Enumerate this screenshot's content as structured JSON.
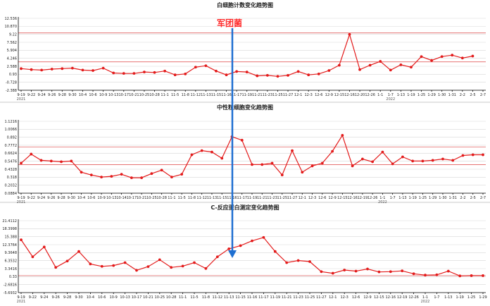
{
  "annotation": {
    "label": "军团菌",
    "color": "#1f6fd1"
  },
  "colors": {
    "series": "#e31b1b",
    "reference": "#d44444",
    "arrow": "#1f6fd1"
  },
  "chart_data": [
    {
      "type": "line",
      "title": "白细胞计数变化趋势图",
      "x": [
        "9-19",
        "9-22",
        "9-24",
        "9-26",
        "9-28",
        "9-30",
        "10-4",
        "10-6",
        "10-9",
        "10-13",
        "10-17",
        "10-21",
        "10-25",
        "10-28",
        "11-1",
        "11-5",
        "11-8",
        "11-12",
        "11-13",
        "11-15",
        "11-16",
        "11-17",
        "11-19",
        "11-21",
        "11-23",
        "11-25",
        "11-27",
        "12-1",
        "12-3",
        "12-6",
        "12-9",
        "12-15",
        "12-16",
        "12-20",
        "12-26",
        "1-1",
        "1-7",
        "1-13",
        "1-19",
        "1-25",
        "1-29",
        "1-30",
        "1-31",
        "2-2",
        "2-5",
        "2-7"
      ],
      "x_tick_labels": [
        "9-19",
        "9-22",
        "9-24",
        "9-26",
        "9-28",
        "9-30",
        "10-4",
        "10-6",
        "10-9",
        "10-13",
        "10-17",
        "10-21",
        "10-25",
        "10-28",
        "11-1",
        "11-5",
        "11-8",
        "11-12",
        "11-13",
        "11-15",
        "11-16",
        "11-17",
        "11-19",
        "11-21",
        "11-23",
        "11-25",
        "11-27",
        "12-1",
        "12-3",
        "12-6",
        "12-9",
        "12-15",
        "12-16",
        "12-20",
        "12-26",
        "1-1",
        "1-7",
        "1-13",
        "1-19",
        "1-25",
        "1-29",
        "1-30",
        "1-31",
        "2-2",
        "2-5",
        "2-7"
      ],
      "years": [
        {
          "label": "2021",
          "at": "9-19"
        },
        {
          "label": "2022",
          "at": "1-7"
        }
      ],
      "values": [
        2.1,
        1.9,
        1.8,
        2.0,
        2.1,
        2.2,
        1.8,
        1.7,
        2.2,
        1.2,
        1.1,
        1.1,
        1.4,
        1.3,
        1.6,
        0.8,
        1.0,
        2.4,
        2.7,
        1.6,
        0.8,
        1.5,
        1.4,
        0.6,
        0.7,
        0.5,
        0.7,
        1.5,
        0.8,
        1.0,
        1.7,
        2.8,
        9.2,
        1.9,
        2.8,
        3.6,
        1.8,
        2.9,
        2.4,
        4.6,
        3.8,
        4.6,
        4.9,
        4.3,
        4.7,
        null
      ],
      "y_ticks": [
        "12.536",
        "10.870",
        "9.22",
        "7.562",
        "5.904",
        "4.246",
        "2.588",
        "0.93",
        "-0.728",
        "-2.388"
      ],
      "ylim": [
        -2.388,
        12.536
      ],
      "reference_lines": [
        9.5,
        3.5
      ],
      "ylabel": "",
      "xlabel": ""
    },
    {
      "type": "line",
      "title": "中性粒细胞变化趋势图",
      "x": [
        "9-19",
        "9-22",
        "9-24",
        "9-26",
        "9-28",
        "9-30",
        "10-4",
        "10-6",
        "10-9",
        "10-13",
        "10-14",
        "10-17",
        "10-21",
        "10-25",
        "10-28",
        "11-1",
        "11-5",
        "11-8",
        "11-12",
        "11-13",
        "11-15",
        "11-16",
        "11-17",
        "11-19",
        "11-21",
        "11-23",
        "11-25",
        "11-27",
        "12-1",
        "12-3",
        "12-6",
        "12-9",
        "12-15",
        "12-16",
        "12-19",
        "12-26",
        "1-1",
        "1-7",
        "1-13",
        "1-19",
        "1-25",
        "1-29",
        "1-30",
        "1-31",
        "2-2",
        "2-5",
        "2-7"
      ],
      "x_tick_labels": [
        "9-19",
        "9-22",
        "9-24",
        "9-26",
        "9-28",
        "9-30",
        "10-4",
        "10-6",
        "10-9",
        "10-13",
        "10-14",
        "10-17",
        "10-21",
        "10-25",
        "10-28",
        "11-1",
        "11-5",
        "11-8",
        "11-12",
        "11-13",
        "11-15",
        "11-16",
        "11-17",
        "11-19",
        "11-21",
        "11-23",
        "11-25",
        "11-27",
        "12-1",
        "12-3",
        "12-6",
        "12-9",
        "12-15",
        "12-16",
        "12-19",
        "12-26",
        "1-1",
        "1-7",
        "1-13",
        "1-19",
        "1-25",
        "1-29",
        "1-30",
        "1-31",
        "2-2",
        "2-5",
        "2-7"
      ],
      "years": [
        {
          "label": "2021",
          "at": "9-19"
        },
        {
          "label": "2022",
          "at": "1-1"
        }
      ],
      "values": [
        0.52,
        0.65,
        0.56,
        0.55,
        0.54,
        0.55,
        0.39,
        0.35,
        0.32,
        0.33,
        0.36,
        0.31,
        0.31,
        0.37,
        0.42,
        0.32,
        0.36,
        0.64,
        0.7,
        0.68,
        0.59,
        0.9,
        0.85,
        0.5,
        0.5,
        0.52,
        0.35,
        0.7,
        0.39,
        0.48,
        0.52,
        0.69,
        0.92,
        0.48,
        0.58,
        0.54,
        0.68,
        0.51,
        0.61,
        0.55,
        0.55,
        0.56,
        0.58,
        0.56,
        0.63,
        0.64,
        0.64
      ],
      "y_ticks": [
        "1.1216",
        "1.0066",
        "0.892",
        "0.7772",
        "0.6624",
        "0.5476",
        "0.4328",
        "0.318",
        "0.2032",
        "0.0884"
      ],
      "ylim": [
        0.0884,
        1.1216
      ],
      "reference_lines": [
        0.75,
        0.5
      ],
      "ylabel": "",
      "xlabel": ""
    },
    {
      "type": "line",
      "title": "C-反应蛋白测定变化趋势图",
      "x": [
        "9-19",
        "9-22",
        "9-24",
        "9-26",
        "9-28",
        "9-30",
        "10-4",
        "10-6",
        "10-9",
        "10-13",
        "10-17",
        "10-21",
        "10-25",
        "10-28",
        "11-1",
        "11-5",
        "11-8",
        "11-12",
        "11-13",
        "11-15",
        "11-16",
        "11-17",
        "11-19",
        "11-21",
        "11-23",
        "11-25",
        "11-27",
        "12-1",
        "12-3",
        "12-6",
        "12-9",
        "12-15",
        "12-16",
        "12-19",
        "12-26",
        "1-1",
        "1-7",
        "1-13",
        "1-19",
        "1-25",
        "1-29"
      ],
      "x_tick_labels": [
        "9-19",
        "9-22",
        "9-24",
        "9-26",
        "9-28",
        "9-30",
        "10-4",
        "10-6",
        "10-9",
        "10-13",
        "10-17",
        "10-21",
        "10-25",
        "10-28",
        "11-1",
        "11-5",
        "11-8",
        "11-12",
        "11-13",
        "11-15",
        "11-16",
        "11-17",
        "11-19",
        "11-21",
        "11-23",
        "11-25",
        "11-27",
        "12-1",
        "12-3",
        "12-6",
        "12-9",
        "12-15",
        "12-16",
        "12-19",
        "12-26",
        "1-1",
        "1-7",
        "1-13",
        "1-19",
        "1-25",
        "1-29"
      ],
      "years": [
        {
          "label": "2021",
          "at": "9-19"
        },
        {
          "label": "2022",
          "at": "1-1"
        }
      ],
      "values": [
        14.2,
        7.8,
        11.5,
        3.8,
        6.2,
        9.8,
        5.1,
        4.2,
        4.5,
        5.6,
        2.7,
        4.1,
        6.7,
        3.8,
        4.3,
        5.6,
        3.4,
        7.8,
        10.8,
        12.0,
        13.8,
        15.1,
        9.8,
        5.6,
        6.4,
        6.0,
        2.2,
        1.6,
        2.8,
        2.4,
        3.2,
        2.1,
        2.2,
        2.5,
        1.4,
        0.9,
        1.0,
        2.4,
        0.6,
        0.7,
        0.7
      ],
      "y_ticks": [
        "21.4112",
        "18.3998",
        "15.388",
        "12.3764",
        "9.3648",
        "6.3532",
        "3.3416",
        "0.33",
        "-2.6816",
        "-5.6932"
      ],
      "ylim": [
        -5.6932,
        21.4112
      ],
      "reference_lines": [
        0.7
      ],
      "ylabel": "",
      "xlabel": ""
    }
  ]
}
